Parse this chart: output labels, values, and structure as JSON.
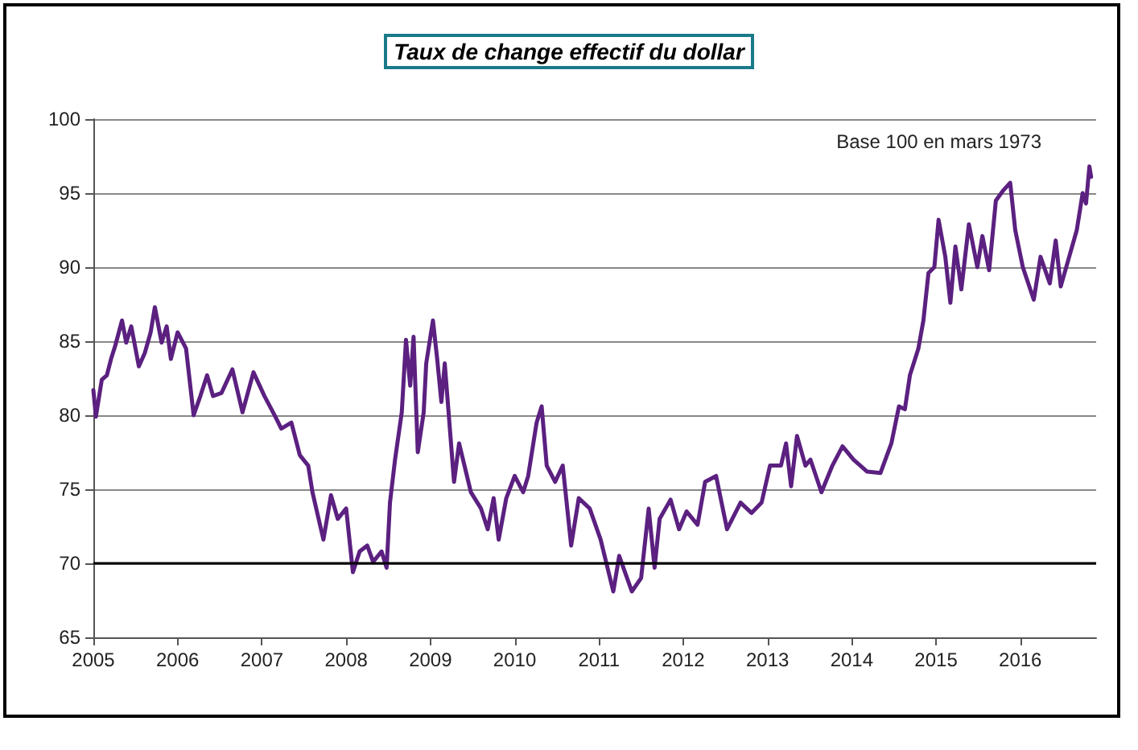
{
  "chart_data": {
    "type": "line",
    "title": "Taux de change effectif du dollar",
    "annotations": [
      "Base 100 en mars 1973"
    ],
    "x": [
      2005.0,
      2005.03,
      2005.1,
      2005.16,
      2005.21,
      2005.26,
      2005.34,
      2005.39,
      2005.45,
      2005.54,
      2005.61,
      2005.68,
      2005.73,
      2005.81,
      2005.87,
      2005.92,
      2006.0,
      2006.1,
      2006.19,
      2006.27,
      2006.35,
      2006.42,
      2006.52,
      2006.65,
      2006.77,
      2006.9,
      2007.03,
      2007.16,
      2007.23,
      2007.35,
      2007.45,
      2007.55,
      2007.6,
      2007.73,
      2007.82,
      2007.9,
      2008.0,
      2008.08,
      2008.16,
      2008.25,
      2008.32,
      2008.42,
      2008.48,
      2008.52,
      2008.58,
      2008.66,
      2008.71,
      2008.76,
      2008.8,
      2008.85,
      2008.92,
      2008.95,
      2009.03,
      2009.08,
      2009.13,
      2009.17,
      2009.28,
      2009.34,
      2009.48,
      2009.6,
      2009.68,
      2009.75,
      2009.81,
      2009.9,
      2010.0,
      2010.1,
      2010.16,
      2010.26,
      2010.32,
      2010.38,
      2010.48,
      2010.57,
      2010.67,
      2010.76,
      2010.89,
      2011.02,
      2011.17,
      2011.24,
      2011.39,
      2011.5,
      2011.59,
      2011.66,
      2011.72,
      2011.85,
      2011.95,
      2012.04,
      2012.17,
      2012.26,
      2012.39,
      2012.52,
      2012.68,
      2012.81,
      2012.93,
      2013.03,
      2013.16,
      2013.22,
      2013.28,
      2013.35,
      2013.45,
      2013.51,
      2013.64,
      2013.77,
      2013.89,
      2014.02,
      2014.18,
      2014.34,
      2014.47,
      2014.56,
      2014.63,
      2014.69,
      2014.79,
      2014.85,
      2014.91,
      2014.98,
      2015.03,
      2015.11,
      2015.17,
      2015.23,
      2015.3,
      2015.39,
      2015.49,
      2015.55,
      2015.63,
      2015.71,
      2015.8,
      2015.88,
      2015.94,
      2016.03,
      2016.16,
      2016.24,
      2016.35,
      2016.42,
      2016.48,
      2016.58,
      2016.67,
      2016.74,
      2016.78,
      2016.82,
      2016.84
    ],
    "series": [
      {
        "color": "#5b2080",
        "values": [
          81.7,
          79.9,
          82.4,
          82.7,
          83.8,
          84.7,
          86.4,
          84.9,
          86.0,
          83.3,
          84.2,
          85.6,
          87.3,
          84.9,
          86.0,
          83.8,
          85.6,
          84.5,
          80.0,
          81.3,
          82.7,
          81.3,
          81.5,
          83.1,
          80.2,
          82.9,
          81.3,
          79.9,
          79.1,
          79.5,
          77.3,
          76.6,
          74.8,
          71.6,
          74.6,
          73.0,
          73.7,
          69.4,
          70.8,
          71.2,
          70.1,
          70.8,
          69.7,
          74.1,
          77.0,
          80.2,
          85.1,
          82.0,
          85.3,
          77.5,
          80.2,
          83.5,
          86.4,
          83.8,
          80.9,
          83.5,
          75.5,
          78.1,
          74.8,
          73.7,
          72.3,
          74.4,
          71.6,
          74.4,
          75.9,
          74.8,
          75.9,
          79.5,
          80.6,
          76.6,
          75.5,
          76.6,
          71.2,
          74.4,
          73.7,
          71.6,
          68.1,
          70.5,
          68.1,
          69.0,
          73.7,
          69.7,
          73.0,
          74.3,
          72.3,
          73.5,
          72.6,
          75.5,
          75.9,
          72.3,
          74.1,
          73.4,
          74.1,
          76.6,
          76.6,
          78.1,
          75.2,
          78.6,
          76.6,
          77.0,
          74.8,
          76.6,
          77.9,
          77.0,
          76.2,
          76.1,
          78.1,
          80.6,
          80.4,
          82.7,
          84.5,
          86.4,
          89.6,
          90.0,
          93.2,
          90.7,
          87.6,
          91.4,
          88.5,
          92.9,
          90.0,
          92.1,
          89.8,
          94.5,
          95.2,
          95.7,
          92.5,
          90.0,
          87.8,
          90.7,
          88.9,
          91.8,
          88.7,
          90.7,
          92.5,
          95.0,
          94.3,
          96.8,
          96.1
        ]
      }
    ],
    "xlim": [
      2005,
      2016.9
    ],
    "xticks": [
      2005,
      2006,
      2007,
      2008,
      2009,
      2010,
      2011,
      2012,
      2013,
      2014,
      2015,
      2016
    ],
    "ylim": [
      65,
      100
    ],
    "yticks": [
      65,
      70,
      75,
      80,
      85,
      90,
      95,
      100
    ],
    "ref_lines": [
      {
        "axis": "y",
        "value": 70,
        "color": "#000000"
      }
    ],
    "grid": "y",
    "marker": "none",
    "line_style": "solid"
  }
}
